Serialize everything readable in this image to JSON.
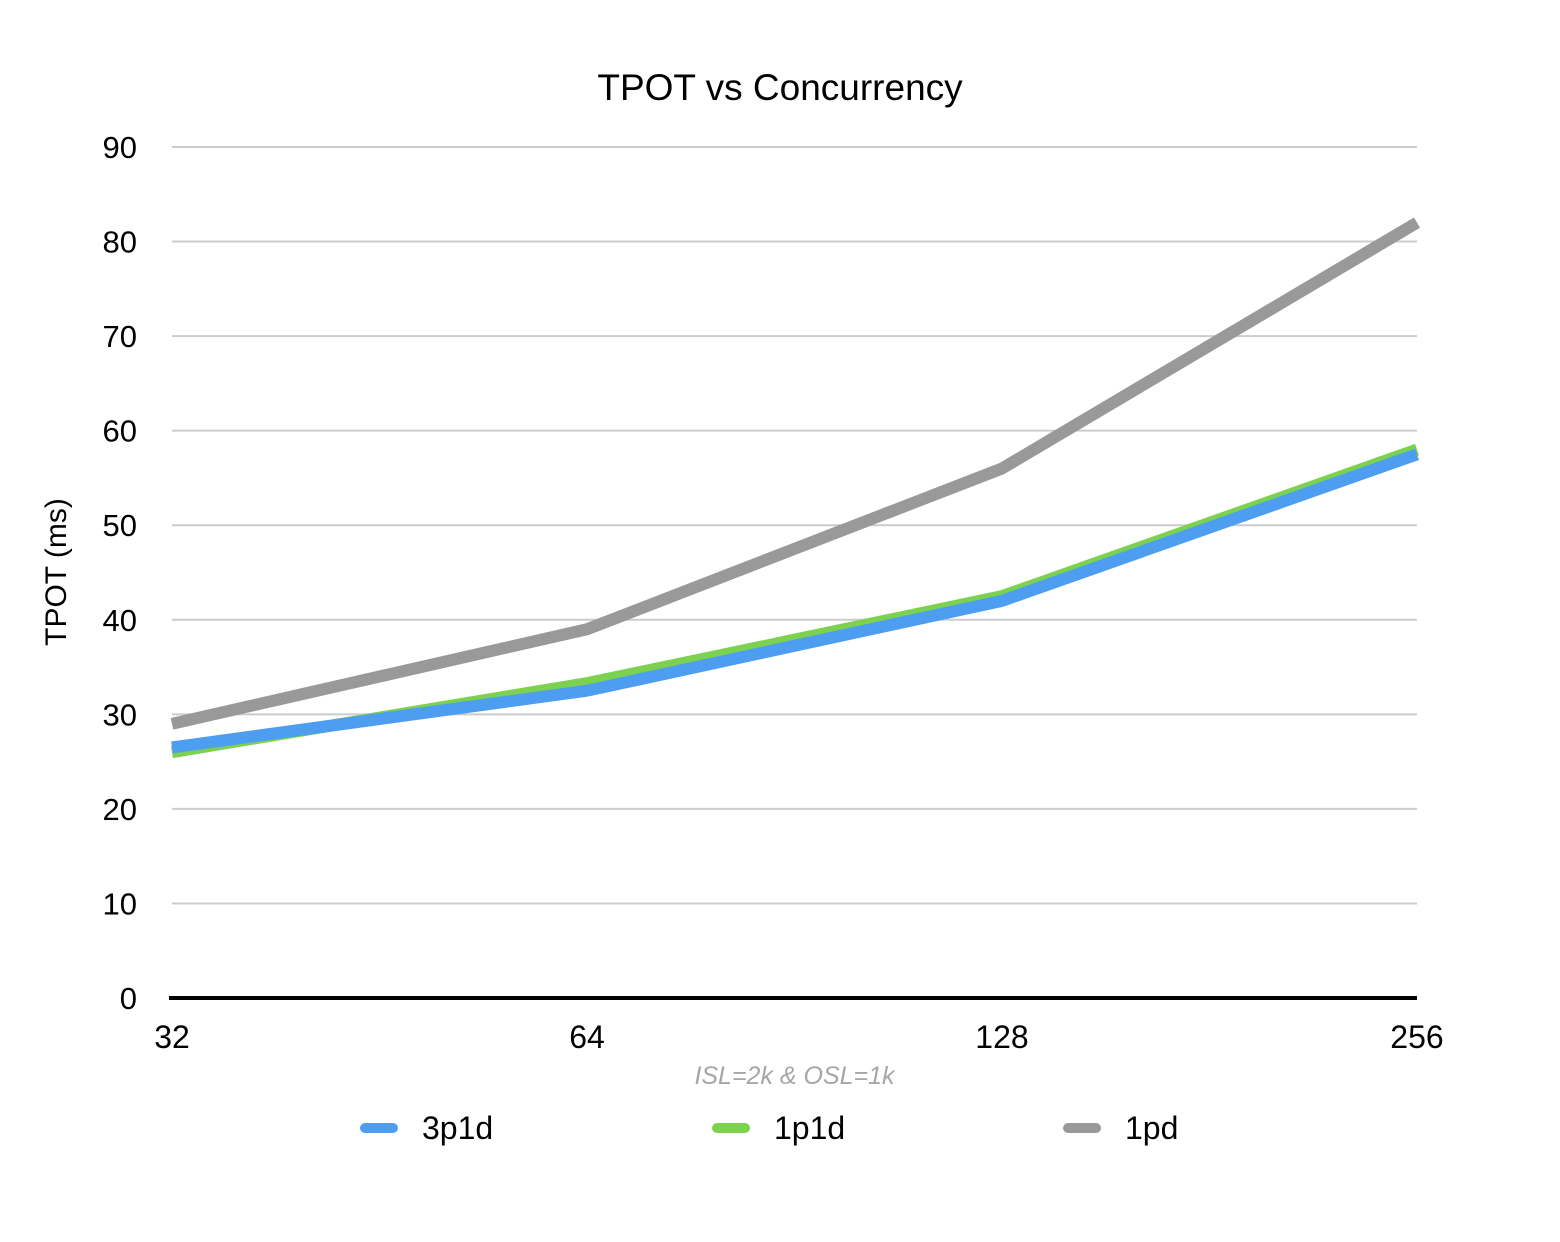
{
  "chart_data": {
    "type": "line",
    "title": "TPOT vs Concurrency",
    "ylabel": "TPOT (ms)",
    "xlabel": "ISL=2k & OSL=1k",
    "categories": [
      "32",
      "64",
      "128",
      "256"
    ],
    "series": [
      {
        "name": "3p1d",
        "color": "#4D9EF0",
        "values": [
          26.5,
          32.5,
          42,
          57.5
        ]
      },
      {
        "name": "1p1d",
        "color": "#7CD24F",
        "values": [
          26,
          33.3,
          42.5,
          58
        ]
      },
      {
        "name": "1pd",
        "color": "#999999",
        "values": [
          29,
          39,
          56,
          82
        ]
      }
    ],
    "ylim": [
      0,
      90
    ],
    "ytick_step": 10,
    "y_tick_labels": [
      "0",
      "10",
      "20",
      "30",
      "40",
      "50",
      "60",
      "70",
      "80",
      "90"
    ],
    "grid": true,
    "legend_position": "bottom",
    "draw_order": [
      "1p1d",
      "3p1d",
      "1pd"
    ]
  },
  "colors": {
    "gridline": "#CCCCCC",
    "axis_line": "#000000",
    "subtitle_text": "#A6A6A6",
    "tick_text": "#000000"
  }
}
